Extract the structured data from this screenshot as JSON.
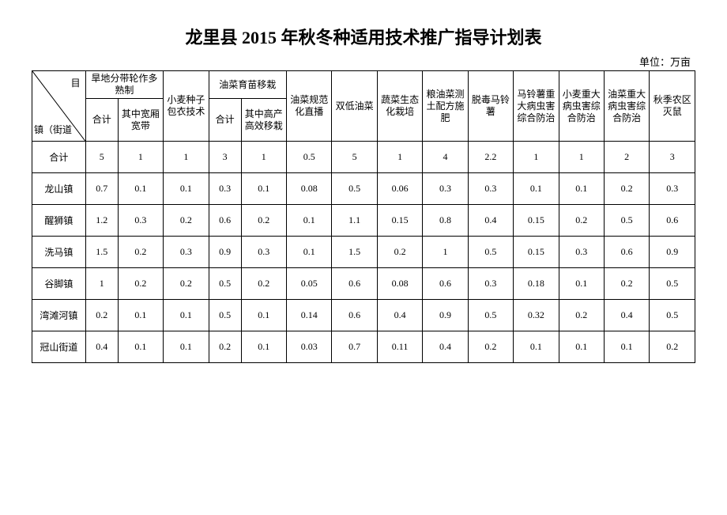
{
  "title": "龙里县 2015 年秋冬种适用技术推广指导计划表",
  "unit_label": "单位：万亩",
  "diag": {
    "top": "目",
    "bottom": "镇（街道"
  },
  "headers": {
    "group1": "旱地分带轮作多熟制",
    "g1_sub1": "合计",
    "g1_sub2": "其中宽厢宽带",
    "col3": "小麦种子包衣技术",
    "group2": "油菜育苗移栽",
    "g2_sub1": "合计",
    "g2_sub2": "其中高产高效移栽",
    "col6": "油菜规范化直播",
    "col7": "双低油菜",
    "col8": "蔬菜生态化栽培",
    "col9": "粮油菜测土配方施肥",
    "col10": "脱毒马铃薯",
    "col11": "马铃薯重大病虫害综合防治",
    "col12": "小麦重大病虫害综合防治",
    "col13": "油菜重大病虫害综合防治",
    "col14": "秋季农区灭鼠"
  },
  "rows": [
    {
      "label": "合计",
      "c": [
        "5",
        "1",
        "1",
        "3",
        "1",
        "0.5",
        "5",
        "1",
        "4",
        "2.2",
        "1",
        "1",
        "2",
        "3"
      ]
    },
    {
      "label": "龙山镇",
      "c": [
        "0.7",
        "0.1",
        "0.1",
        "0.3",
        "0.1",
        "0.08",
        "0.5",
        "0.06",
        "0.3",
        "0.3",
        "0.1",
        "0.1",
        "0.2",
        "0.3"
      ]
    },
    {
      "label": "醒狮镇",
      "c": [
        "1.2",
        "0.3",
        "0.2",
        "0.6",
        "0.2",
        "0.1",
        "1.1",
        "0.15",
        "0.8",
        "0.4",
        "0.15",
        "0.2",
        "0.5",
        "0.6"
      ]
    },
    {
      "label": "洗马镇",
      "c": [
        "1.5",
        "0.2",
        "0.3",
        "0.9",
        "0.3",
        "0.1",
        "1.5",
        "0.2",
        "1",
        "0.5",
        "0.15",
        "0.3",
        "0.6",
        "0.9"
      ]
    },
    {
      "label": "谷脚镇",
      "c": [
        "1",
        "0.2",
        "0.2",
        "0.5",
        "0.2",
        "0.05",
        "0.6",
        "0.08",
        "0.6",
        "0.3",
        "0.18",
        "0.1",
        "0.2",
        "0.5"
      ]
    },
    {
      "label": "湾滩河镇",
      "c": [
        "0.2",
        "0.1",
        "0.1",
        "0.5",
        "0.1",
        "0.14",
        "0.6",
        "0.4",
        "0.9",
        "0.5",
        "0.32",
        "0.2",
        "0.4",
        "0.5"
      ]
    },
    {
      "label": "冠山街道",
      "c": [
        "0.4",
        "0.1",
        "0.1",
        "0.2",
        "0.1",
        "0.03",
        "0.7",
        "0.11",
        "0.4",
        "0.2",
        "0.1",
        "0.1",
        "0.1",
        "0.2"
      ]
    }
  ]
}
